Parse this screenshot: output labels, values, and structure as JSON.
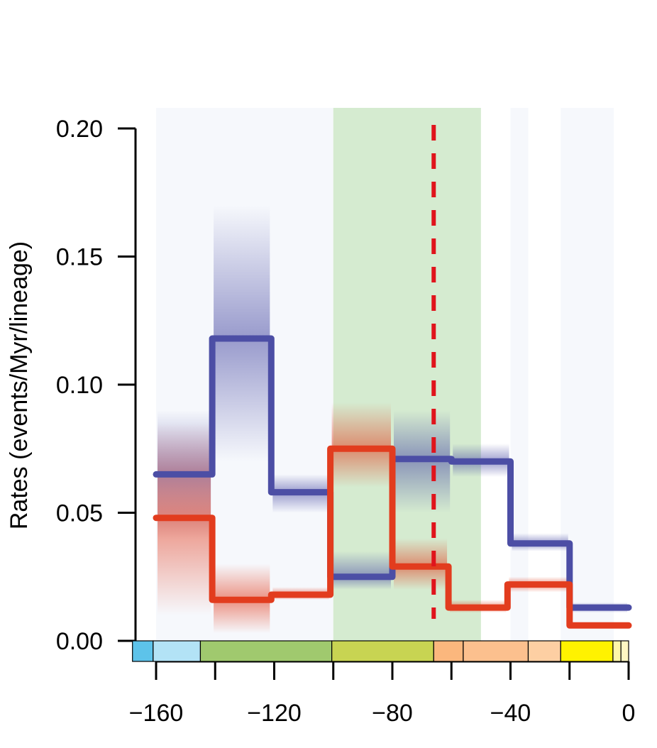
{
  "chart_data": {
    "type": "line",
    "title": "",
    "xlabel": "",
    "ylabel": "Rates (events/Myr/lineage)",
    "xlim": [
      -168,
      0
    ],
    "ylim": [
      0,
      0.2
    ],
    "x_ticks": [
      -160,
      -140,
      -120,
      -100,
      -80,
      -60,
      -40,
      -20,
      0
    ],
    "x_tick_labels": [
      "−160",
      "",
      "−120",
      "",
      "−80",
      "",
      "−40",
      "",
      "0"
    ],
    "y_ticks": [
      0.0,
      0.05,
      0.1,
      0.15,
      0.2
    ],
    "y_tick_labels": [
      "0.00",
      "0.05",
      "0.10",
      "0.15",
      "0.20"
    ],
    "grid": false,
    "highlight_band": {
      "x": [
        -100,
        -50
      ],
      "color": "#d5ebd0"
    },
    "event_line": {
      "x": -66,
      "color": "#e0141c",
      "style": "dashed"
    },
    "background_bands": [
      [
        -160,
        -145
      ],
      [
        -145,
        -100
      ],
      [
        -40,
        -34
      ],
      [
        -23,
        -5
      ]
    ],
    "series": [
      {
        "color": "#4c4ea5",
        "steps": [
          {
            "x0": -160,
            "x1": -141,
            "y": 0.065,
            "lo": 0.04,
            "hi": 0.09
          },
          {
            "x0": -141,
            "x1": -121,
            "y": 0.118,
            "lo": 0.07,
            "hi": 0.17
          },
          {
            "x0": -121,
            "x1": -101,
            "y": 0.058,
            "lo": 0.05,
            "hi": 0.065
          },
          {
            "x0": -101,
            "x1": -80,
            "y": 0.025,
            "lo": 0.02,
            "hi": 0.035
          },
          {
            "x0": -80,
            "x1": -60,
            "y": 0.071,
            "lo": 0.05,
            "hi": 0.09
          },
          {
            "x0": -60,
            "x1": -40,
            "y": 0.07,
            "lo": 0.064,
            "hi": 0.077
          },
          {
            "x0": -40,
            "x1": -20,
            "y": 0.038,
            "lo": 0.035,
            "hi": 0.042
          },
          {
            "x0": -20,
            "x1": 0,
            "y": 0.013,
            "lo": 0.011,
            "hi": 0.015
          }
        ]
      },
      {
        "color": "#e23c1e",
        "steps": [
          {
            "x0": -160,
            "x1": -141,
            "y": 0.048,
            "lo": 0.01,
            "hi": 0.085
          },
          {
            "x0": -141,
            "x1": -121,
            "y": 0.016,
            "lo": 0.003,
            "hi": 0.03
          },
          {
            "x0": -121,
            "x1": -101,
            "y": 0.018,
            "lo": 0.016,
            "hi": 0.021
          },
          {
            "x0": -101,
            "x1": -80,
            "y": 0.075,
            "lo": 0.06,
            "hi": 0.093
          },
          {
            "x0": -80,
            "x1": -61,
            "y": 0.029,
            "lo": 0.02,
            "hi": 0.04
          },
          {
            "x0": -61,
            "x1": -41,
            "y": 0.013,
            "lo": 0.011,
            "hi": 0.016
          },
          {
            "x0": -41,
            "x1": -20,
            "y": 0.022,
            "lo": 0.019,
            "hi": 0.025
          },
          {
            "x0": -20,
            "x1": 0,
            "y": 0.006,
            "lo": 0.005,
            "hi": 0.007
          }
        ]
      }
    ],
    "timescale_bar": [
      {
        "x0": -168,
        "x1": -161,
        "color": "#5dc3ea"
      },
      {
        "x0": -161,
        "x1": -145,
        "color": "#b3e3f6"
      },
      {
        "x0": -145,
        "x1": -100.5,
        "color": "#a0c96e"
      },
      {
        "x0": -100.5,
        "x1": -66,
        "color": "#c8d452"
      },
      {
        "x0": -66,
        "x1": -56,
        "color": "#fbb77d"
      },
      {
        "x0": -56,
        "x1": -34,
        "color": "#fcc08e"
      },
      {
        "x0": -34,
        "x1": -23,
        "color": "#fdcfa3"
      },
      {
        "x0": -23,
        "x1": -5.3,
        "color": "#fff200"
      },
      {
        "x0": -5.3,
        "x1": -2.6,
        "color": "#fff7a8"
      },
      {
        "x0": -2.6,
        "x1": 0,
        "color": "#fff7c2"
      }
    ]
  }
}
